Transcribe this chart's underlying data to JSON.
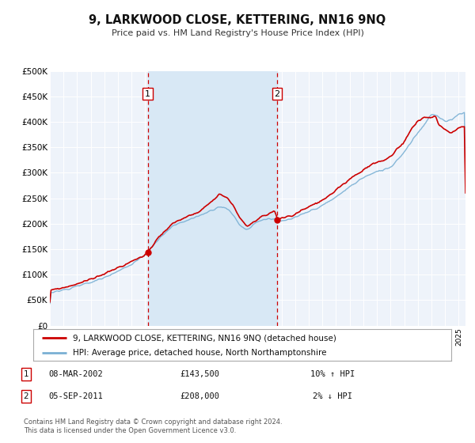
{
  "title": "9, LARKWOOD CLOSE, KETTERING, NN16 9NQ",
  "subtitle": "Price paid vs. HM Land Registry's House Price Index (HPI)",
  "background_color": "#ffffff",
  "plot_bg_color": "#eef3fa",
  "grid_color": "#ffffff",
  "xmin": 1995.0,
  "xmax": 2025.5,
  "ymin": 0,
  "ymax": 500000,
  "yticks": [
    0,
    50000,
    100000,
    150000,
    200000,
    250000,
    300000,
    350000,
    400000,
    450000,
    500000
  ],
  "ytick_labels": [
    "£0",
    "£50K",
    "£100K",
    "£150K",
    "£200K",
    "£250K",
    "£300K",
    "£350K",
    "£400K",
    "£450K",
    "£500K"
  ],
  "sale1_x": 2002.18,
  "sale1_y": 143500,
  "sale1_label": "1",
  "sale1_date": "08-MAR-2002",
  "sale1_price": "£143,500",
  "sale1_hpi": "10% ↑ HPI",
  "sale2_x": 2011.67,
  "sale2_y": 208000,
  "sale2_label": "2",
  "sale2_date": "05-SEP-2011",
  "sale2_price": "£208,000",
  "sale2_hpi": "2% ↓ HPI",
  "red_line_color": "#cc0000",
  "blue_line_color": "#7ab0d4",
  "marker_color": "#cc0000",
  "vline_color": "#cc0000",
  "shade_color": "#d8e8f5",
  "legend_label1": "9, LARKWOOD CLOSE, KETTERING, NN16 9NQ (detached house)",
  "legend_label2": "HPI: Average price, detached house, North Northamptonshire",
  "footer1": "Contains HM Land Registry data © Crown copyright and database right 2024.",
  "footer2": "This data is licensed under the Open Government Licence v3.0."
}
